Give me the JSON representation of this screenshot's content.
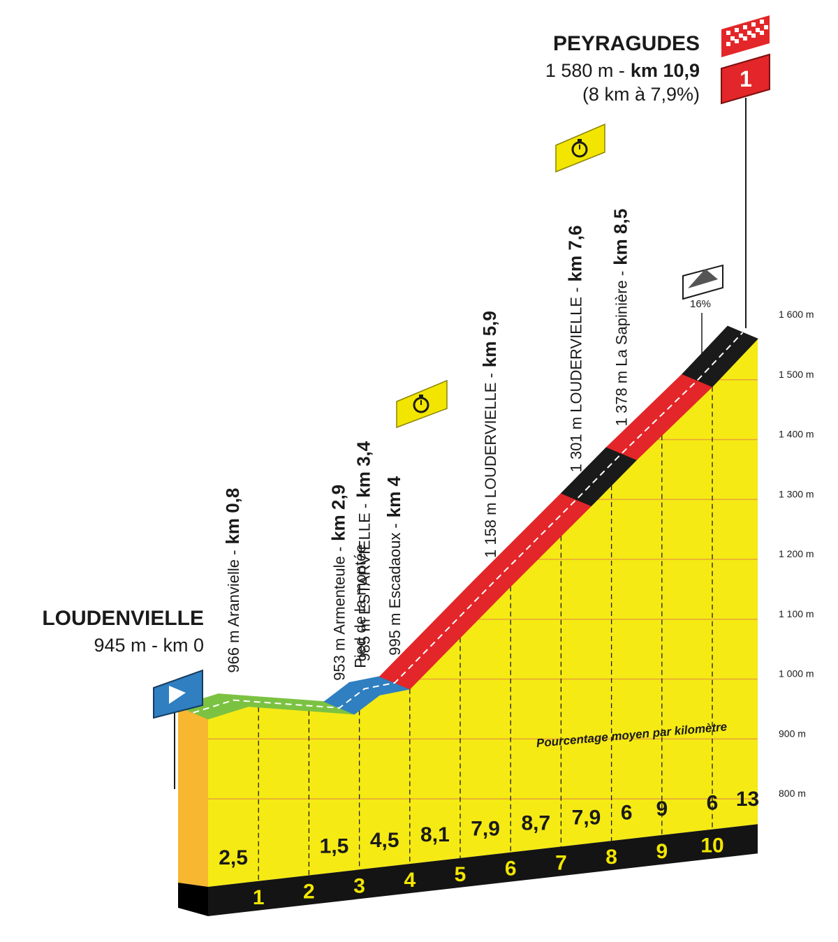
{
  "chart_data": {
    "type": "profile",
    "start": {
      "name": "LOUDENVIELLE",
      "detail": "945 m - km 0"
    },
    "finish": {
      "name": "PEYRAGUDES",
      "detail": "1 580 m -",
      "detail_km": "km 10,9",
      "note": "(8 km à 7,9%)",
      "flag": "1"
    },
    "waypoints": [
      {
        "place": "966 m Aranvielle -",
        "km": "km 0,8"
      },
      {
        "place": "953 m Armenteule -",
        "km": "km 2,9",
        "note": "Pied de la montée"
      },
      {
        "place": "985 m ESTARVIELLE -",
        "km": "km 3,4"
      },
      {
        "place": "995 m Escadaoux -",
        "km": "km 4"
      },
      {
        "place": "1 158 m LOUDERVIELLE -",
        "km": "km 5,9"
      },
      {
        "place": "1 301 m LOUDERVIELLE -",
        "km": "km 7,6"
      },
      {
        "place": "1 378 m La Sapinière -",
        "km": "km 8,5"
      }
    ],
    "profile": {
      "km": [
        0,
        0.8,
        2.9,
        3.4,
        4,
        5.9,
        7.6,
        8.5,
        10,
        10.9
      ],
      "alt": [
        945,
        966,
        953,
        985,
        995,
        1158,
        1301,
        1378,
        1500,
        1580
      ],
      "colors": [
        "#7cc242",
        "#7cc242",
        "#2f7fc1",
        "#2f7fc1",
        "#e32629",
        "#e32629",
        "#1a1a1a",
        "#e32629",
        "#1a1a1a"
      ]
    },
    "steepest": "16%",
    "gradient_title": "Pourcentage moyen par kilomètre",
    "gradients": {
      "at": [
        0.5,
        2.5,
        3.5,
        4.5,
        5.5,
        6.5,
        7.5,
        8.3,
        9,
        10,
        10.7
      ],
      "values": [
        2.5,
        1.5,
        4.5,
        8.1,
        7.9,
        8.7,
        7.9,
        6,
        9,
        6,
        13
      ],
      "value_labels": [
        "2,5",
        "1,5",
        "4,5",
        "8,1",
        "7,9",
        "8,7",
        "7,9",
        "6",
        "9",
        "6",
        "13"
      ]
    },
    "xlim": [
      0,
      10.9
    ],
    "xticks": [
      1,
      2,
      3,
      4,
      5,
      6,
      7,
      8,
      9,
      10
    ],
    "ylim": [
      800,
      1600
    ],
    "yticks": [
      {
        "value": 800,
        "label": "800 m"
      },
      {
        "value": 900,
        "label": "900 m"
      },
      {
        "value": 1000,
        "label": "1 000 m"
      },
      {
        "value": 1100,
        "label": "1 100 m"
      },
      {
        "value": 1200,
        "label": "1 200 m"
      },
      {
        "value": 1300,
        "label": "1 300 m"
      },
      {
        "value": 1400,
        "label": "1 400 m"
      },
      {
        "value": 1500,
        "label": "1 500 m"
      },
      {
        "value": 1600,
        "label": "1 600 m"
      }
    ],
    "grid": true
  }
}
